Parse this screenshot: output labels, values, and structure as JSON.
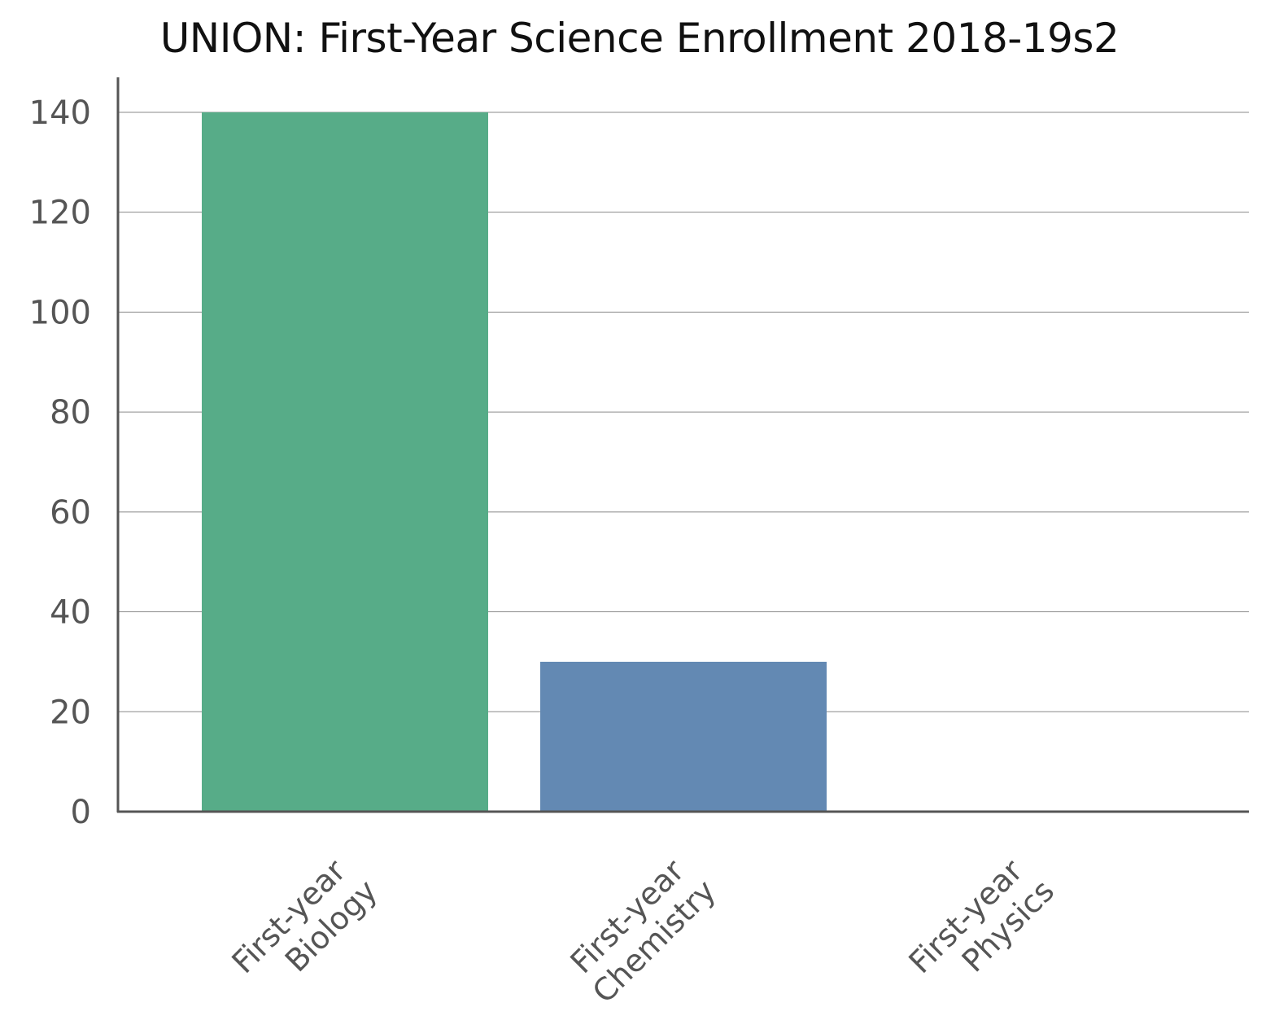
{
  "chart_data": {
    "type": "bar",
    "title": "UNION: First-Year Science Enrollment 2018-19s2",
    "categories": [
      "First-year Biology",
      "First-year Chemistry",
      "First-year Physics"
    ],
    "category_lines": [
      [
        "First-year",
        "Biology"
      ],
      [
        "First-year",
        "Chemistry"
      ],
      [
        "First-year",
        "Physics"
      ]
    ],
    "values": [
      140,
      30,
      0
    ],
    "colors": [
      "#57ac88",
      "#6389b3",
      "#57ac88"
    ],
    "xlabel": "",
    "ylabel": "",
    "ylim": [
      0,
      147
    ],
    "yticks": [
      0,
      20,
      40,
      60,
      80,
      100,
      120,
      140
    ],
    "grid": true,
    "legend": "none"
  }
}
